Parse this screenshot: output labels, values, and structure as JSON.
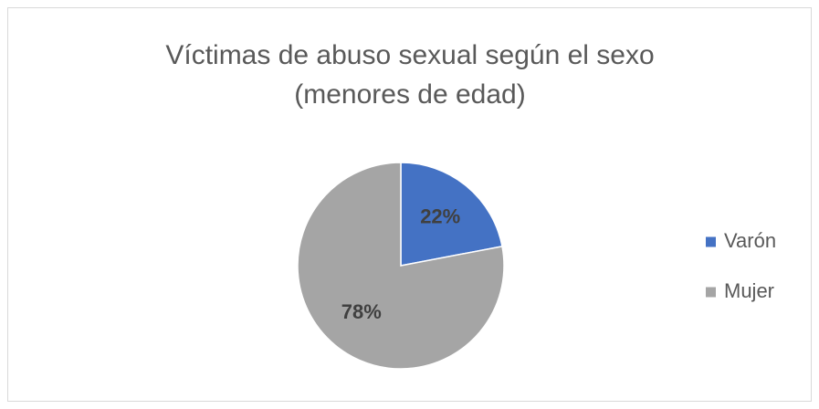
{
  "chart_data": {
    "type": "pie",
    "title": [
      "Víctimas de abuso sexual según el sexo",
      "(menores de edad)"
    ],
    "categories": [
      "Varón",
      "Mujer"
    ],
    "values": [
      22,
      78
    ],
    "value_labels": [
      "22%",
      "78%"
    ],
    "colors": [
      "#4472c4",
      "#a5a5a5"
    ],
    "legend": "right"
  }
}
